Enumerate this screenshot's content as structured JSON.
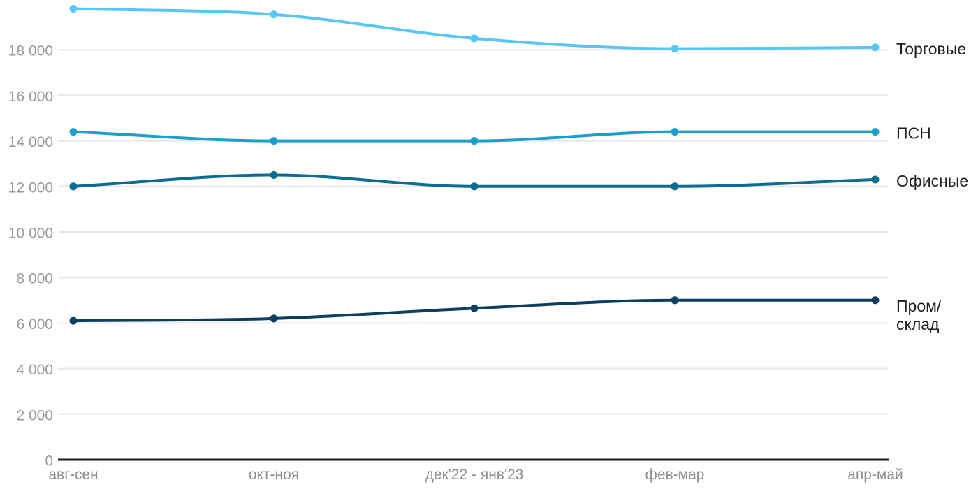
{
  "chart_data": {
    "type": "line",
    "title": "",
    "xlabel": "",
    "ylabel": "",
    "categories": [
      "авг-сен",
      "окт-ноя",
      "дек'22 - янв'23",
      "фев-мар",
      "апр-май"
    ],
    "series": [
      {
        "id": "torgovye",
        "name": "Торговые",
        "label_lines": [
          "Торговые"
        ],
        "color": "#58c7f4",
        "values": [
          19800,
          19550,
          18500,
          18050,
          18100
        ]
      },
      {
        "id": "psn",
        "name": "ПСН",
        "label_lines": [
          "ПСН"
        ],
        "color": "#1c9fcc",
        "values": [
          14400,
          14000,
          14000,
          14400,
          14400
        ]
      },
      {
        "id": "ofisnye",
        "name": "Офисные",
        "label_lines": [
          "Офисные"
        ],
        "color": "#0d6c92",
        "values": [
          12000,
          12500,
          12000,
          12000,
          12300
        ]
      },
      {
        "id": "prom-sklad",
        "name": "Пром/склад",
        "label_lines": [
          "Пром/",
          "склад"
        ],
        "color": "#0d3f61",
        "values": [
          6100,
          6200,
          6650,
          7000,
          7000
        ]
      }
    ],
    "y_axis": {
      "ticks": [
        0,
        2000,
        4000,
        6000,
        8000,
        10000,
        12000,
        14000,
        16000,
        18000
      ],
      "tick_labels": [
        "0",
        "2 000",
        "4 000",
        "6 000",
        "8 000",
        "10 000",
        "12 000",
        "14 000",
        "16 000",
        "18 000"
      ],
      "min": 0,
      "max": 20180
    },
    "layout": {
      "grid": true,
      "legend_position": "right-of-last-point",
      "colors": {
        "gridline": "#e6e6e6",
        "axis_line": "#1c1c1c",
        "tick_text": "#9b9b9b",
        "label_text": "#1f1f1f",
        "background": "#ffffff"
      }
    }
  }
}
